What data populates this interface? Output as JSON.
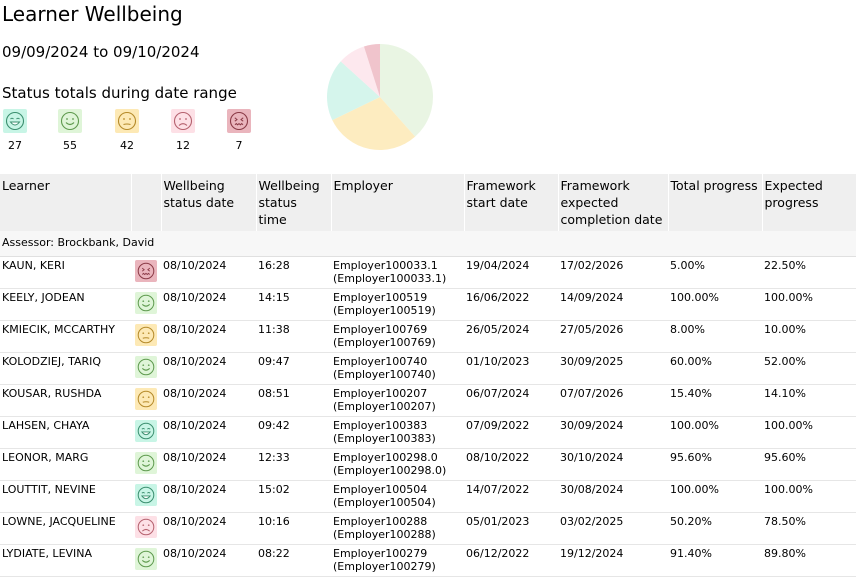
{
  "title": "Learner Wellbeing",
  "date_range": "09/09/2024 to 09/10/2024",
  "totals_label": "Status totals during date range",
  "statuses": [
    {
      "icon": "very-happy-face-icon",
      "count": "27",
      "color": "#c8f5e6",
      "stroke": "#3b8f6f"
    },
    {
      "icon": "happy-face-icon",
      "count": "55",
      "color": "#dff5d8",
      "stroke": "#5e9a4e"
    },
    {
      "icon": "neutral-face-icon",
      "count": "42",
      "color": "#fde9b5",
      "stroke": "#b58a2a"
    },
    {
      "icon": "sad-face-icon",
      "count": "12",
      "color": "#fde0e6",
      "stroke": "#b5626f"
    },
    {
      "icon": "very-sad-face-icon",
      "count": "7",
      "color": "#eab5bd",
      "stroke": "#8a3a46"
    }
  ],
  "pie_colors": [
    "#d5f5ec",
    "#e9f5e3",
    "#fdecc0",
    "#fde8ee",
    "#f0c4cc"
  ],
  "columns": [
    "Learner",
    "",
    "Wellbeing status date",
    "Wellbeing status time",
    "Employer",
    "Framework start date",
    "Framework expected completion date",
    "Total progress",
    "Expected progress"
  ],
  "assessor": "Assessor: Brockbank, David",
  "rows": [
    {
      "learner": "KAUN, KERI",
      "status": 4,
      "date": "08/10/2024",
      "time": "16:28",
      "employer1": "Employer100033.1",
      "employer2": "(Employer100033.1)",
      "start": "19/04/2024",
      "completion": "17/02/2026",
      "total": "5.00%",
      "expected": "22.50%"
    },
    {
      "learner": "KEELY, JODEAN",
      "status": 1,
      "date": "08/10/2024",
      "time": "14:15",
      "employer1": "Employer100519",
      "employer2": "(Employer100519)",
      "start": "16/06/2022",
      "completion": "14/09/2024",
      "total": "100.00%",
      "expected": "100.00%"
    },
    {
      "learner": "KMIECIK, MCCARTHY",
      "status": 2,
      "date": "08/10/2024",
      "time": "11:38",
      "employer1": "Employer100769",
      "employer2": "(Employer100769)",
      "start": "26/05/2024",
      "completion": "27/05/2026",
      "total": "8.00%",
      "expected": "10.00%"
    },
    {
      "learner": "KOLODZIEJ, TARIQ",
      "status": 1,
      "date": "08/10/2024",
      "time": "09:47",
      "employer1": "Employer100740",
      "employer2": "(Employer100740)",
      "start": "01/10/2023",
      "completion": "30/09/2025",
      "total": "60.00%",
      "expected": "52.00%"
    },
    {
      "learner": "KOUSAR, RUSHDA",
      "status": 2,
      "date": "08/10/2024",
      "time": "08:51",
      "employer1": "Employer100207",
      "employer2": "(Employer100207)",
      "start": "06/07/2024",
      "completion": "07/07/2026",
      "total": "15.40%",
      "expected": "14.10%"
    },
    {
      "learner": "LAHSEN, CHAYA",
      "status": 0,
      "date": "08/10/2024",
      "time": "09:42",
      "employer1": "Employer100383",
      "employer2": "(Employer100383)",
      "start": "07/09/2022",
      "completion": "30/09/2024",
      "total": "100.00%",
      "expected": "100.00%"
    },
    {
      "learner": "LEONOR, MARG",
      "status": 1,
      "date": "08/10/2024",
      "time": "12:33",
      "employer1": "Employer100298.0",
      "employer2": "(Employer100298.0)",
      "start": "08/10/2022",
      "completion": "30/10/2024",
      "total": "95.60%",
      "expected": "95.60%"
    },
    {
      "learner": "LOUTTIT, NEVINE",
      "status": 0,
      "date": "08/10/2024",
      "time": "15:02",
      "employer1": "Employer100504",
      "employer2": "(Employer100504)",
      "start": "14/07/2022",
      "completion": "30/08/2024",
      "total": "100.00%",
      "expected": "100.00%"
    },
    {
      "learner": "LOWNE, JACQUELINE",
      "status": 3,
      "date": "08/10/2024",
      "time": "10:16",
      "employer1": "Employer100288",
      "employer2": "(Employer100288)",
      "start": "05/01/2023",
      "completion": "03/02/2025",
      "total": "50.20%",
      "expected": "78.50%"
    },
    {
      "learner": "LYDIATE, LEVINA",
      "status": 1,
      "date": "08/10/2024",
      "time": "08:22",
      "employer1": "Employer100279",
      "employer2": "(Employer100279)",
      "start": "06/12/2022",
      "completion": "19/12/2024",
      "total": "91.40%",
      "expected": "89.80%"
    }
  ]
}
